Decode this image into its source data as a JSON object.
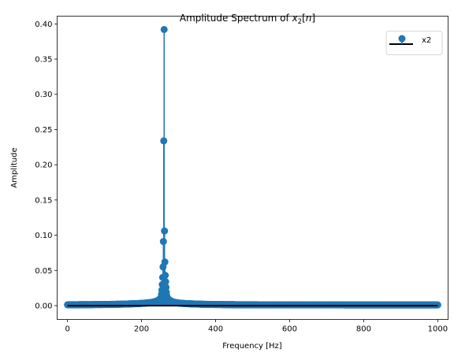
{
  "chart_data": {
    "type": "stem",
    "title": {
      "prefix": "Amplitude Spectrum of ",
      "math_symbol": "x",
      "math_subscript": "2",
      "math_bracket_open": "[",
      "math_index": "n",
      "math_bracket_close": "]"
    },
    "xlabel": "Frequency [Hz]",
    "ylabel": "Amplitude",
    "xlim": [
      -28,
      1028
    ],
    "ylim": [
      -0.0196,
      0.411
    ],
    "xticks": [
      0,
      200,
      400,
      600,
      800,
      1000
    ],
    "xtick_labels": [
      "0",
      "200",
      "400",
      "600",
      "800",
      "1000"
    ],
    "yticks": [
      0.0,
      0.05,
      0.1,
      0.15,
      0.2,
      0.25,
      0.3,
      0.35,
      0.4
    ],
    "ytick_labels": [
      "0.00",
      "0.05",
      "0.10",
      "0.15",
      "0.20",
      "0.25",
      "0.30",
      "0.35",
      "0.40"
    ],
    "grid": false,
    "legend_position": "top-right",
    "series": [
      {
        "name": "x2",
        "color": "#1f77b4",
        "baseline_color": "#000000",
        "x_range": [
          0,
          1000
        ],
        "peaks": [
          {
            "x": 261,
            "y": 0.392
          },
          {
            "x": 260,
            "y": 0.234
          },
          {
            "x": 262,
            "y": 0.106
          },
          {
            "x": 259,
            "y": 0.091
          },
          {
            "x": 263,
            "y": 0.062
          },
          {
            "x": 258,
            "y": 0.055
          },
          {
            "x": 264,
            "y": 0.043
          },
          {
            "x": 257,
            "y": 0.04
          },
          {
            "x": 265,
            "y": 0.034
          },
          {
            "x": 256,
            "y": 0.03
          },
          {
            "x": 266,
            "y": 0.026
          },
          {
            "x": 255,
            "y": 0.022
          },
          {
            "x": 267,
            "y": 0.019
          },
          {
            "x": 254,
            "y": 0.016
          },
          {
            "x": 268,
            "y": 0.014
          },
          {
            "x": 253,
            "y": 0.012
          }
        ],
        "floor_level": 0.001
      }
    ]
  }
}
